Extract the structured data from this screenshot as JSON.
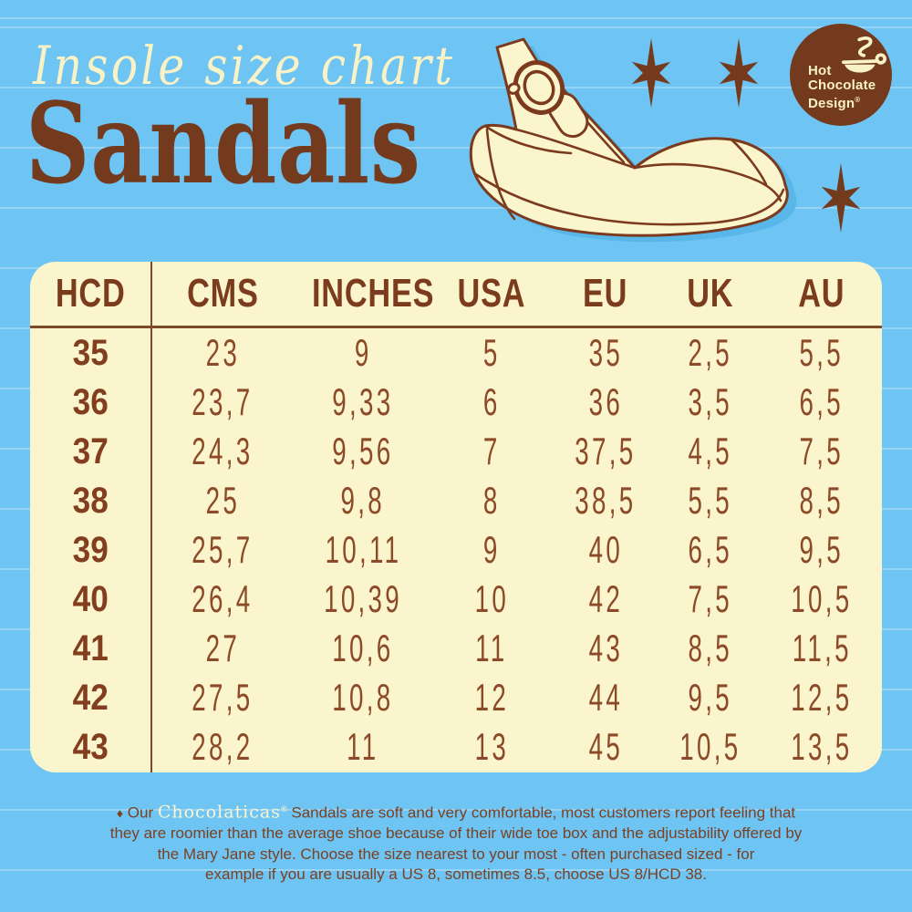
{
  "colors": {
    "background_blue": "#6ec4f2",
    "stripe_blue": "#8ad1f7",
    "cream": "#fbf5cd",
    "brown": "#743a1d",
    "table_number_brown": "#8c4a28",
    "shadow_blue": "#58b6e8"
  },
  "header": {
    "script_title": "Insole size chart",
    "product_title": "Sandals"
  },
  "logo": {
    "word1": "Hot",
    "word2": "Chocolate",
    "word3": "Design",
    "registered": "®"
  },
  "chart_data": {
    "type": "table",
    "title": "Insole size chart — Sandals",
    "columns": [
      "HCD",
      "CMS",
      "INCHES",
      "USA",
      "EU",
      "UK",
      "AU"
    ],
    "rows": [
      [
        "35",
        "23",
        "9",
        "5",
        "35",
        "2,5",
        "5,5"
      ],
      [
        "36",
        "23,7",
        "9,33",
        "6",
        "36",
        "3,5",
        "6,5"
      ],
      [
        "37",
        "24,3",
        "9,56",
        "7",
        "37,5",
        "4,5",
        "7,5"
      ],
      [
        "38",
        "25",
        "9,8",
        "8",
        "38,5",
        "5,5",
        "8,5"
      ],
      [
        "39",
        "25,7",
        "10,11",
        "9",
        "40",
        "6,5",
        "9,5"
      ],
      [
        "40",
        "26,4",
        "10,39",
        "10",
        "42",
        "7,5",
        "10,5"
      ],
      [
        "41",
        "27",
        "10,6",
        "11",
        "43",
        "8,5",
        "11,5"
      ],
      [
        "42",
        "27,5",
        "10,8",
        "12",
        "44",
        "9,5",
        "12,5"
      ],
      [
        "43",
        "28,2",
        "11",
        "13",
        "45",
        "10,5",
        "13,5"
      ]
    ]
  },
  "footer": {
    "bullet": "♦",
    "line1_pre": "Our",
    "brand": "Chocolaticas",
    "brand_reg": "®",
    "line1_post": "Sandals are soft and very comfortable, most customers report feeling that",
    "line2": "they are roomier than the average shoe because of their wide toe box and the adjustability offered by",
    "line3": "the Mary Jane style. Choose the size nearest to your most - often  purchased sized - for",
    "line4": "example if you are usually a US 8, sometimes 8.5, choose US 8/HCD 38."
  }
}
